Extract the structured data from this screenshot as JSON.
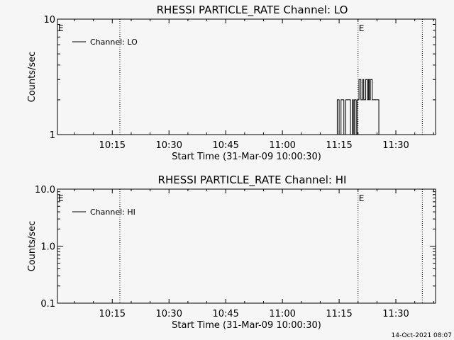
{
  "footer_timestamp": "14-Oct-2021 08:07",
  "chart_data": [
    {
      "type": "line",
      "title": "RHESSI PARTICLE_RATE Channel: LO",
      "xlabel": "Start Time (31-Mar-09 10:00:30)",
      "ylabel": "Counts/sec",
      "yscale": "log",
      "ylim": [
        1,
        10
      ],
      "y_ticks": [
        {
          "value": 1,
          "label": "1"
        },
        {
          "value": 10,
          "label": "10"
        }
      ],
      "xlim": [
        "10:00:30",
        "11:40:30"
      ],
      "x_ticks": [
        "10:15",
        "10:30",
        "10:45",
        "11:00",
        "11:15",
        "11:30"
      ],
      "legend": {
        "placement": "top-left",
        "entries": [
          "Channel: LO"
        ]
      },
      "markers": [
        {
          "time": "10:00:30",
          "label": "E"
        },
        {
          "time": "10:17:00",
          "label": ""
        },
        {
          "time": "11:20:00",
          "label": "E"
        },
        {
          "time": "11:37:00",
          "label": ""
        }
      ],
      "series": [
        {
          "name": "Channel: LO",
          "x": [
            "11:14:00",
            "11:14:30",
            "11:14:45",
            "11:15:00",
            "11:15:15",
            "11:15:30",
            "11:16:15",
            "11:16:30",
            "11:16:45",
            "11:17:00",
            "11:18:00",
            "11:18:30",
            "11:18:45",
            "11:19:00",
            "11:19:15",
            "11:19:30",
            "11:19:45",
            "11:20:00",
            "11:20:15",
            "11:20:30",
            "11:20:45",
            "11:21:00",
            "11:21:15",
            "11:21:30",
            "11:21:45",
            "11:22:00",
            "11:22:15",
            "11:22:30",
            "11:22:45",
            "11:23:00",
            "11:23:15",
            "11:23:30",
            "11:23:45",
            "11:24:00",
            "11:24:15",
            "11:25:15",
            "11:25:30",
            "11:25:45",
            "11:26:00"
          ],
          "values": [
            0.9,
            2.0,
            2.0,
            0.9,
            0.9,
            2.0,
            0.9,
            0.9,
            2.0,
            2.0,
            0.9,
            2.0,
            0.9,
            2.0,
            2.0,
            0.9,
            2.0,
            2.0,
            3.0,
            3.0,
            2.0,
            2.0,
            3.0,
            2.0,
            2.0,
            3.0,
            3.0,
            2.0,
            3.0,
            2.0,
            3.0,
            3.0,
            2.0,
            2.0,
            2.0,
            2.0,
            0.9,
            0.9,
            0.9
          ]
        }
      ]
    },
    {
      "type": "line",
      "title": "RHESSI PARTICLE_RATE Channel: HI",
      "xlabel": "Start Time (31-Mar-09 10:00:30)",
      "ylabel": "Counts/sec",
      "yscale": "log",
      "ylim": [
        0.1,
        10
      ],
      "y_ticks": [
        {
          "value": 0.1,
          "label": "0.1"
        },
        {
          "value": 1,
          "label": "1.0"
        },
        {
          "value": 10,
          "label": "10.0"
        }
      ],
      "xlim": [
        "10:00:30",
        "11:40:30"
      ],
      "x_ticks": [
        "10:15",
        "10:30",
        "10:45",
        "11:00",
        "11:15",
        "11:30"
      ],
      "legend": {
        "placement": "top-left",
        "entries": [
          "Channel: HI"
        ]
      },
      "markers": [
        {
          "time": "10:00:30",
          "label": "E"
        },
        {
          "time": "10:17:00",
          "label": ""
        },
        {
          "time": "11:20:00",
          "label": "E"
        },
        {
          "time": "11:37:00",
          "label": ""
        }
      ],
      "series": [
        {
          "name": "Channel: HI",
          "x": [],
          "values": []
        }
      ]
    }
  ]
}
